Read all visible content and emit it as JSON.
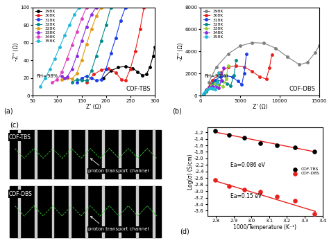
{
  "chart_data": [
    {
      "type": "line",
      "panel": "(a)",
      "title": "COF-TBS",
      "annotation": "RH=98%",
      "x_label": "Z' (Ω)",
      "y_label": "-Z'' (Ω)",
      "xlim": [
        50,
        300
      ],
      "xticks": [
        50,
        100,
        150,
        200,
        250,
        300
      ],
      "ylim": [
        0,
        100
      ],
      "yticks": [
        0,
        20,
        40,
        60,
        80,
        100
      ],
      "legend": "upper left",
      "marker": "o",
      "line_style": "solid",
      "series": [
        {
          "name": "298K",
          "color": "#000000",
          "x": [
            195,
            210,
            225,
            240,
            255,
            265,
            275,
            283,
            290,
            297,
            300
          ],
          "values": [
            20,
            28,
            32,
            33,
            31,
            27,
            23,
            24,
            32,
            45,
            55
          ]
        },
        {
          "name": "308K",
          "color": "#e8201c",
          "x": [
            160,
            175,
            190,
            205,
            220,
            232,
            240,
            250,
            260,
            270,
            278
          ],
          "values": [
            15,
            24,
            29,
            31,
            26,
            18,
            17,
            30,
            50,
            75,
            100
          ]
        },
        {
          "name": "318K",
          "color": "#1a3ee8",
          "x": [
            140,
            150,
            160,
            170,
            180,
            190,
            200,
            210,
            220,
            230,
            240
          ],
          "values": [
            15,
            20,
            22,
            20,
            17,
            18,
            30,
            48,
            65,
            85,
            100
          ]
        },
        {
          "name": "328K",
          "color": "#008b8b",
          "x": [
            130,
            140,
            150,
            160,
            170,
            180,
            190,
            200,
            210
          ],
          "values": [
            15,
            18,
            17,
            17,
            28,
            45,
            62,
            80,
            100
          ]
        },
        {
          "name": "328K",
          "color": "#e09a10",
          "x": [
            110,
            120,
            130,
            140,
            150,
            160,
            170,
            180,
            190
          ],
          "values": [
            18,
            20,
            19,
            25,
            40,
            58,
            75,
            90,
            100
          ]
        },
        {
          "name": "338K",
          "color": "#8a2be2",
          "x": [
            110,
            115,
            120,
            130,
            140,
            150,
            160,
            170,
            180
          ],
          "values": [
            22,
            20,
            21,
            30,
            45,
            62,
            78,
            92,
            100
          ]
        },
        {
          "name": "348K",
          "color": "#e040c0",
          "x": [
            90,
            100,
            110,
            120,
            130,
            140,
            150,
            160
          ],
          "values": [
            15,
            18,
            27,
            42,
            57,
            72,
            87,
            100
          ]
        },
        {
          "name": "358K",
          "color": "#20b8d8",
          "x": [
            65,
            75,
            85,
            95,
            105,
            115,
            125,
            135,
            145
          ],
          "values": [
            10,
            20,
            30,
            42,
            55,
            68,
            80,
            92,
            100
          ]
        }
      ]
    },
    {
      "type": "line",
      "panel": "(b)",
      "title": "COF-DBS",
      "annotation": "RH=98%",
      "x_label": "Z' (Ω)",
      "y_label": "-Z'' (Ω)",
      "xlim": [
        0,
        15000
      ],
      "xticks": [
        0,
        5000,
        10000,
        15000
      ],
      "ylim": [
        0,
        8000
      ],
      "yticks": [
        0,
        2000,
        4000,
        6000,
        8000
      ],
      "legend": "upper left",
      "marker": "o",
      "line_style": "solid",
      "series": [
        {
          "name": "298K",
          "color": "#808080",
          "x": [
            1000,
            2000,
            3500,
            5000,
            6500,
            8000,
            9500,
            11000,
            12500,
            13500,
            14500,
            15000
          ],
          "values": [
            1200,
            2600,
            3800,
            4500,
            4800,
            4750,
            4300,
            3500,
            2800,
            3000,
            3900,
            4500
          ]
        },
        {
          "name": "308K",
          "color": "#e8201c",
          "x": [
            800,
            1500,
            2500,
            3500,
            4500,
            5500,
            6500,
            7500,
            8300,
            8700,
            9000
          ],
          "values": [
            600,
            1400,
            2100,
            2600,
            2700,
            2600,
            2200,
            1700,
            1500,
            2500,
            3700
          ]
        },
        {
          "name": "318K",
          "color": "#1a3ee8",
          "x": [
            700,
            1200,
            1800,
            2500,
            3200,
            4000,
            4700,
            5200,
            5500,
            5800
          ],
          "values": [
            400,
            900,
            1400,
            1700,
            1800,
            1700,
            1300,
            1000,
            2000,
            3800
          ]
        },
        {
          "name": "328K",
          "color": "#008b8b",
          "x": [
            600,
            1000,
            1500,
            2100,
            2700,
            3300,
            3800,
            4200,
            4500
          ],
          "values": [
            300,
            700,
            1100,
            1350,
            1350,
            1100,
            900,
            1800,
            3200
          ]
        },
        {
          "name": "338K",
          "color": "#9acd32",
          "x": [
            500,
            900,
            1300,
            1800,
            2300,
            2800,
            3200,
            3500
          ],
          "values": [
            250,
            600,
            900,
            1050,
            1000,
            800,
            1500,
            2700
          ]
        },
        {
          "name": "348K",
          "color": "#8a2be2",
          "x": [
            400,
            700,
            1100,
            1500,
            1900,
            2300,
            2600,
            2900
          ],
          "values": [
            200,
            500,
            750,
            850,
            800,
            700,
            1400,
            2500
          ]
        },
        {
          "name": "358K",
          "color": "#20b8d8",
          "x": [
            300,
            600,
            900,
            1200,
            1500,
            1800,
            2100,
            2300
          ],
          "values": [
            150,
            400,
            600,
            700,
            650,
            600,
            1200,
            2100
          ]
        }
      ]
    },
    {
      "type": "scatter",
      "panel": "(d)",
      "x_label": "1000/Temperature (K⁻¹)",
      "y_label": "Log(σ) (S/cm)",
      "xlim": [
        2.75,
        3.4
      ],
      "xticks": [
        2.8,
        2.9,
        3.0,
        3.1,
        3.2,
        3.3,
        3.4
      ],
      "ylim": [
        -3.75,
        -1.05
      ],
      "yticks": [
        -1.2,
        -1.4,
        -1.6,
        -1.8,
        -2.0,
        -2.2,
        -2.4,
        -2.6,
        -2.8,
        -3.0,
        -3.2,
        -3.4,
        -3.6
      ],
      "legend": "center right",
      "annotations": [
        "Ea=0.086 eV",
        "Ea=0.15 eV"
      ],
      "series": [
        {
          "name": "COF-TBS",
          "color": "#000000",
          "marker": "o",
          "x": [
            3.356,
            3.247,
            3.145,
            3.049,
            2.959,
            2.874,
            2.793
          ],
          "values": [
            -1.8,
            -1.66,
            -1.6,
            -1.53,
            -1.37,
            -1.28,
            -1.15
          ]
        },
        {
          "name": "COF-DBS",
          "color": "#e8201c",
          "marker": "o",
          "x": [
            3.356,
            3.247,
            3.145,
            3.049,
            2.959,
            2.874,
            2.793
          ],
          "values": [
            -3.7,
            -3.3,
            -3.16,
            -3.02,
            -2.95,
            -2.85,
            -2.65
          ]
        },
        {
          "type": "line",
          "color": "#e8201c",
          "line_style": "solid",
          "x": [
            2.79,
            3.36
          ],
          "values": [
            -1.19,
            -1.8
          ]
        },
        {
          "type": "line",
          "color": "#e8201c",
          "line_style": "solid",
          "x": [
            2.79,
            3.36
          ],
          "values": [
            -2.68,
            -3.62
          ]
        }
      ]
    }
  ],
  "diagram": {
    "label": "(c)",
    "panels": [
      {
        "name": "COF-TBS",
        "annotation": "proton transport channel"
      },
      {
        "name": "COF-DBS",
        "annotation": "proton transport channel"
      }
    ]
  }
}
